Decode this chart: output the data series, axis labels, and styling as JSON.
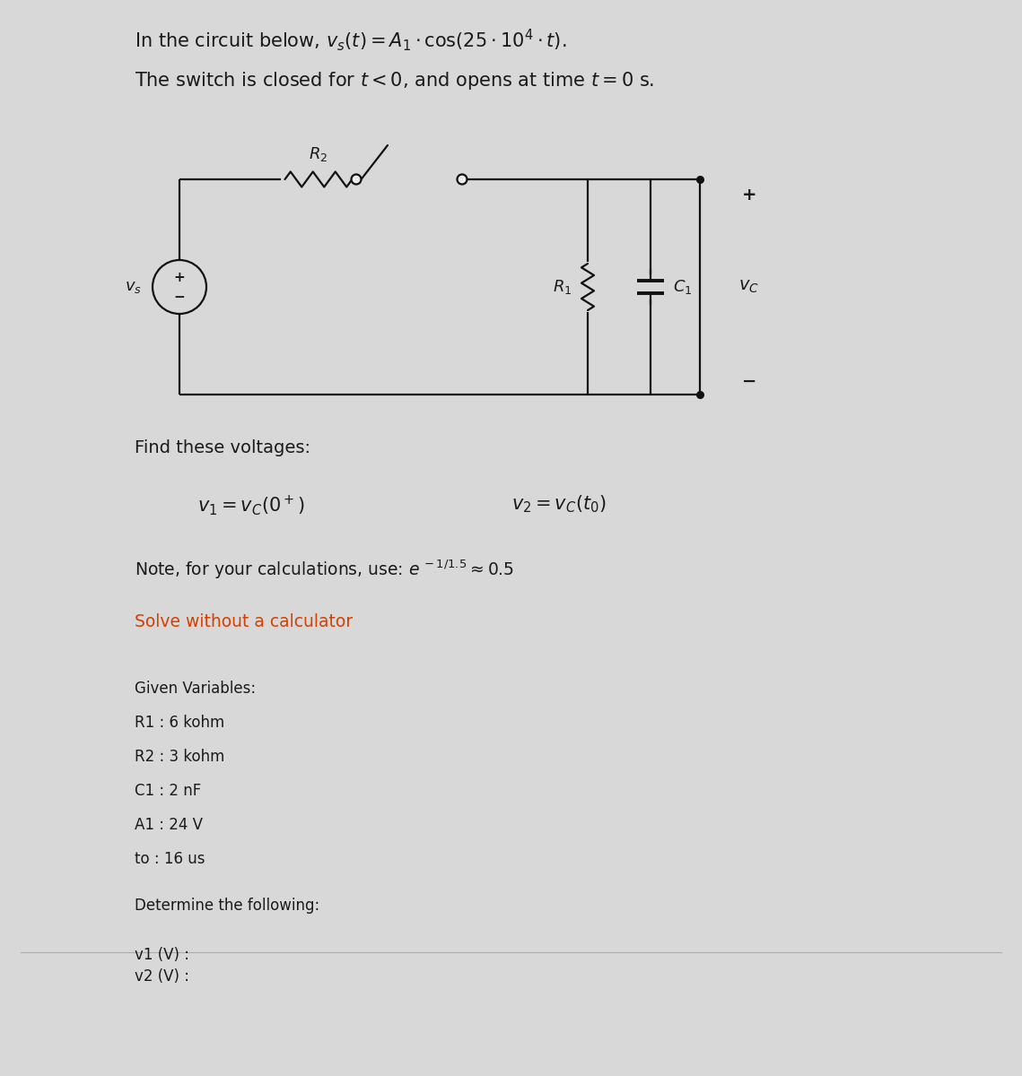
{
  "bg_color": "#d8d8d8",
  "panel_color": "#ebebeb",
  "title_line1": "In the circuit below, $v_s(t)  =  A_1 \\cdot \\cos(25 \\cdot 10^4 \\cdot t)$.",
  "title_line2": "The switch is closed for $t < 0$, and opens at time $t = 0$ s.",
  "find_text": "Find these voltages:",
  "v1_eq": "$v_1 = v_C(0^+)$",
  "v2_eq": "$v_2 = v_C(t_0)$",
  "note_text": "Note, for your calculations, use: $e^{\\,-1/1.5} \\approx 0.5$",
  "solve_text": "Solve without a calculator",
  "given_label": "Given Variables:",
  "given_vars": [
    "R1 : 6 kohm",
    "R2 : 3 kohm",
    "C1 : 2 nF",
    "A1 : 24 V",
    "to : 16 us"
  ],
  "determine_text": "Determine the following:",
  "v1_label": "v1 (V) :",
  "v2_label": "v2 (V) :",
  "text_color": "#1a1a1a",
  "red_color": "#d44000",
  "circuit_color": "#111111",
  "lw": 1.6
}
